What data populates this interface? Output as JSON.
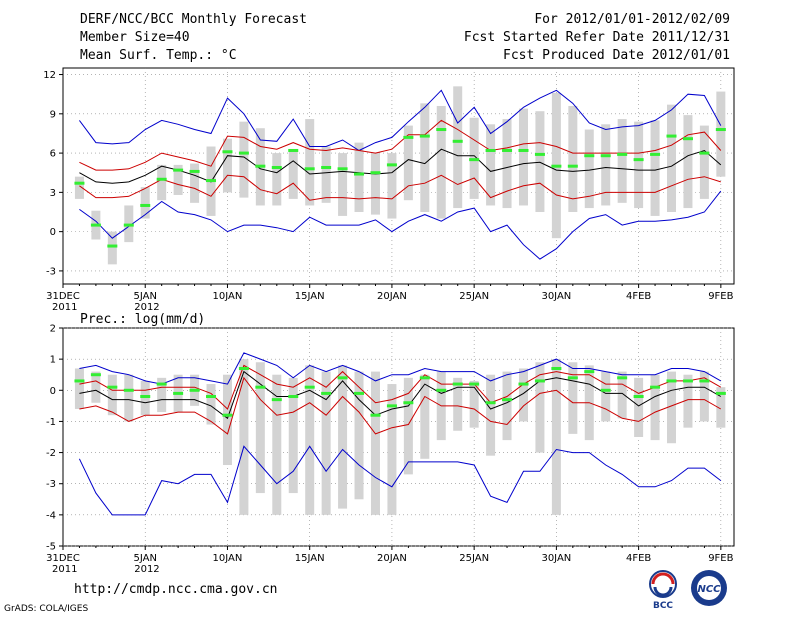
{
  "header": {
    "left": [
      "DERF/NCC/BCC Monthly Forecast",
      "Member Size=40",
      "Mean Surf. Temp.: °C"
    ],
    "right": [
      "For 2012/01/01-2012/02/09",
      "Fcst Started Refer Date 2011/12/31",
      "Fcst Produced Date 2012/01/01"
    ]
  },
  "bottom_panel_title": "Prec.: log(mm/d)",
  "footer": {
    "url": "http://cmdp.ncc.cma.gov.cn",
    "credit": "GrADS: COLA/IGES"
  },
  "logos": [
    {
      "icon": "bcc-logo",
      "label": "BCC"
    },
    {
      "icon": "ncc-logo",
      "label": "NCC"
    }
  ],
  "colors": {
    "envelope": "#0000cc",
    "spread": "#cc0000",
    "mean": "#000000",
    "box": "#d3d3d3",
    "median": "#33ee33"
  },
  "x_ticks": [
    {
      "day": 0,
      "label": "31DEC",
      "sub": "2011"
    },
    {
      "day": 5,
      "label": "5JAN",
      "sub": "2012"
    },
    {
      "day": 10,
      "label": "10JAN",
      "sub": ""
    },
    {
      "day": 15,
      "label": "15JAN",
      "sub": ""
    },
    {
      "day": 20,
      "label": "20JAN",
      "sub": ""
    },
    {
      "day": 25,
      "label": "25JAN",
      "sub": ""
    },
    {
      "day": 30,
      "label": "30JAN",
      "sub": ""
    },
    {
      "day": 35,
      "label": "4FEB",
      "sub": ""
    },
    {
      "day": 40,
      "label": "9FEB",
      "sub": ""
    }
  ],
  "chart_data": [
    {
      "type": "box",
      "title": "Mean Surf. Temp.: °C",
      "x_start_day": 1,
      "x_end_day": 40,
      "xlim": [
        0,
        40.8
      ],
      "ylim": [
        -4,
        12.5
      ],
      "yticks": [
        -3,
        0,
        3,
        6,
        9,
        12
      ],
      "box_low": [
        2.5,
        -0.6,
        -2.5,
        -0.8,
        1.0,
        2.4,
        2.8,
        2.2,
        1.2,
        3.0,
        2.6,
        2.0,
        2.0,
        2.5,
        2.0,
        2.2,
        1.2,
        1.5,
        1.3,
        1.0,
        2.4,
        1.5,
        1.0,
        1.8,
        2.5,
        2.0,
        1.8,
        2.0,
        1.5,
        -0.5,
        1.5,
        1.8,
        2.0,
        2.2,
        1.8,
        1.2,
        1.5,
        1.8,
        2.5,
        4.2
      ],
      "box_high": [
        4.2,
        1.6,
        0.0,
        2.0,
        3.4,
        5.1,
        5.1,
        5.2,
        6.5,
        7.1,
        8.4,
        7.9,
        6.0,
        6.3,
        8.6,
        6.5,
        6.0,
        6.8,
        6.0,
        6.0,
        8.1,
        9.8,
        9.6,
        11.1,
        8.7,
        8.2,
        8.6,
        9.4,
        9.2,
        10.6,
        9.6,
        7.8,
        8.2,
        8.6,
        8.4,
        8.5,
        9.7,
        8.9,
        8.1,
        10.7
      ],
      "median": [
        3.7,
        0.5,
        -1.1,
        0.5,
        2.0,
        4.0,
        4.7,
        4.6,
        3.9,
        6.1,
        6.0,
        5.0,
        4.9,
        6.2,
        4.8,
        4.9,
        4.8,
        4.4,
        4.5,
        5.1,
        7.2,
        7.3,
        7.8,
        6.9,
        5.5,
        6.2,
        6.2,
        6.2,
        5.9,
        5.0,
        5.0,
        5.8,
        5.8,
        5.9,
        5.5,
        5.9,
        7.3,
        7.1,
        6.0,
        7.8
      ],
      "series": [
        {
          "name": "max",
          "color": "#0000cc",
          "values": [
            8.5,
            6.8,
            6.7,
            6.8,
            7.8,
            8.5,
            8.2,
            7.8,
            7.5,
            10.2,
            9.0,
            7.0,
            6.9,
            8.6,
            6.5,
            6.5,
            7.0,
            6.2,
            6.8,
            7.2,
            8.4,
            9.5,
            10.8,
            8.3,
            9.5,
            7.5,
            8.4,
            9.5,
            10.2,
            10.8,
            9.8,
            8.3,
            7.8,
            8.0,
            8.1,
            8.5,
            9.3,
            10.5,
            10.4,
            8.1
          ]
        },
        {
          "name": "mean+sd",
          "color": "#cc0000",
          "values": [
            5.3,
            4.7,
            4.7,
            4.8,
            5.3,
            6.0,
            5.7,
            5.4,
            5.0,
            7.3,
            7.2,
            6.5,
            6.3,
            6.8,
            6.3,
            6.2,
            6.4,
            6.2,
            6.0,
            6.3,
            7.4,
            7.4,
            8.5,
            7.8,
            7.0,
            6.2,
            6.4,
            6.7,
            6.8,
            6.5,
            6.0,
            6.0,
            6.0,
            6.0,
            6.0,
            6.2,
            6.6,
            7.4,
            7.6,
            6.2
          ]
        },
        {
          "name": "mean",
          "color": "#000000",
          "values": [
            4.5,
            3.8,
            3.7,
            3.8,
            4.3,
            5.0,
            4.7,
            4.3,
            3.8,
            5.8,
            5.7,
            4.8,
            4.5,
            5.4,
            4.4,
            4.5,
            4.6,
            4.5,
            4.4,
            4.5,
            5.5,
            5.2,
            6.3,
            5.8,
            5.8,
            4.6,
            4.9,
            5.2,
            5.3,
            4.7,
            4.6,
            4.7,
            4.9,
            4.8,
            4.7,
            4.7,
            5.0,
            5.8,
            6.2,
            5.1
          ]
        },
        {
          "name": "mean-sd",
          "color": "#cc0000",
          "values": [
            3.5,
            2.6,
            2.6,
            2.7,
            3.3,
            4.0,
            3.6,
            3.3,
            2.7,
            4.3,
            4.2,
            3.2,
            2.9,
            3.7,
            2.4,
            2.6,
            2.6,
            2.5,
            2.6,
            2.5,
            3.5,
            3.7,
            4.3,
            3.6,
            4.1,
            2.6,
            3.1,
            3.5,
            3.7,
            2.8,
            2.5,
            2.7,
            3.0,
            3.0,
            3.0,
            3.0,
            3.5,
            4.0,
            4.2,
            3.8
          ]
        },
        {
          "name": "min",
          "color": "#0000cc",
          "values": [
            1.7,
            0.8,
            -0.5,
            0.4,
            1.3,
            2.3,
            1.5,
            1.3,
            0.9,
            0.0,
            0.5,
            0.5,
            0.3,
            0.0,
            1.1,
            0.5,
            0.5,
            0.5,
            0.9,
            0.0,
            0.8,
            1.3,
            0.8,
            1.5,
            1.8,
            0.0,
            0.5,
            -1.0,
            -2.1,
            -1.3,
            0.0,
            1.0,
            1.3,
            0.5,
            0.8,
            0.8,
            0.9,
            1.1,
            1.5,
            3.1
          ]
        }
      ]
    },
    {
      "type": "box",
      "title": "Prec.: log(mm/d)",
      "x_start_day": 1,
      "x_end_day": 40,
      "xlim": [
        0,
        40.8
      ],
      "ylim": [
        -5,
        2
      ],
      "yticks": [
        -5,
        -4,
        -3,
        -2,
        -1,
        0,
        1,
        2
      ],
      "box_low": [
        -0.6,
        -0.4,
        -0.8,
        -1.0,
        -0.8,
        -0.7,
        -0.7,
        -0.5,
        -1.1,
        -2.4,
        -4.0,
        -3.3,
        -4.0,
        -3.3,
        -4.0,
        -4.0,
        -3.8,
        -3.5,
        -4.0,
        -4.0,
        -2.7,
        -2.2,
        -1.6,
        -1.3,
        -1.2,
        -2.1,
        -1.6,
        -1.0,
        -2.0,
        -4.0,
        -1.4,
        -1.6,
        -1.0,
        -0.9,
        -1.5,
        -1.6,
        -1.7,
        -1.2,
        -1.0,
        -1.2
      ],
      "box_high": [
        0.7,
        0.6,
        0.5,
        0.5,
        0.3,
        0.4,
        0.5,
        0.5,
        0.2,
        0.5,
        1.0,
        0.9,
        0.5,
        0.4,
        0.8,
        0.6,
        0.8,
        0.6,
        0.6,
        0.2,
        0.4,
        0.5,
        0.6,
        0.4,
        0.3,
        0.5,
        0.6,
        0.7,
        0.9,
        1.0,
        0.9,
        0.8,
        0.6,
        0.6,
        0.4,
        0.5,
        0.6,
        0.5,
        0.6,
        0.1
      ],
      "median": [
        0.3,
        0.5,
        0.1,
        0.0,
        -0.2,
        0.2,
        -0.1,
        0.0,
        -0.2,
        -0.8,
        0.7,
        0.1,
        -0.3,
        -0.2,
        0.1,
        -0.1,
        0.4,
        -0.1,
        -0.8,
        -0.5,
        -0.4,
        0.4,
        0.0,
        0.2,
        0.2,
        -0.4,
        -0.3,
        0.2,
        0.3,
        0.7,
        0.4,
        0.6,
        0.0,
        0.4,
        -0.2,
        0.1,
        0.3,
        0.3,
        0.3,
        -0.1
      ],
      "series": [
        {
          "name": "max",
          "color": "#0000cc",
          "values": [
            0.7,
            0.8,
            0.6,
            0.5,
            0.3,
            0.2,
            0.4,
            0.4,
            0.3,
            0.2,
            1.2,
            1.0,
            0.8,
            0.4,
            0.8,
            0.6,
            0.8,
            0.6,
            0.3,
            0.5,
            0.5,
            0.7,
            0.6,
            0.6,
            0.6,
            0.3,
            0.5,
            0.6,
            0.8,
            1.0,
            0.7,
            0.7,
            0.6,
            0.5,
            0.5,
            0.5,
            0.7,
            0.7,
            0.6,
            0.3
          ]
        },
        {
          "name": "mean+sd",
          "color": "#cc0000",
          "values": [
            0.2,
            0.3,
            0.0,
            0.0,
            0.0,
            0.1,
            0.1,
            0.1,
            -0.1,
            -0.6,
            0.8,
            0.5,
            0.2,
            0.1,
            0.4,
            0.1,
            0.6,
            0.1,
            -0.4,
            -0.3,
            -0.1,
            0.5,
            0.2,
            0.2,
            0.2,
            -0.4,
            -0.2,
            0.2,
            0.5,
            0.6,
            0.5,
            0.5,
            0.2,
            0.2,
            -0.1,
            0.1,
            0.3,
            0.3,
            0.4,
            0.1
          ]
        },
        {
          "name": "mean",
          "color": "#000000",
          "values": [
            -0.1,
            0.0,
            -0.3,
            -0.3,
            -0.4,
            -0.3,
            -0.3,
            -0.3,
            -0.5,
            -0.9,
            0.6,
            0.2,
            -0.2,
            -0.2,
            0.0,
            -0.3,
            0.3,
            -0.3,
            -0.8,
            -0.6,
            -0.5,
            0.2,
            -0.1,
            0.1,
            0.1,
            -0.6,
            -0.4,
            -0.1,
            0.3,
            0.4,
            0.3,
            0.2,
            -0.1,
            -0.1,
            -0.5,
            -0.2,
            0.0,
            0.1,
            0.1,
            -0.2
          ]
        },
        {
          "name": "mean-sd",
          "color": "#cc0000",
          "values": [
            -0.6,
            -0.5,
            -0.7,
            -1.0,
            -0.8,
            -0.8,
            -0.7,
            -0.7,
            -1.0,
            -1.4,
            0.4,
            -0.3,
            -0.8,
            -0.7,
            -0.4,
            -0.8,
            -0.2,
            -0.7,
            -1.4,
            -1.2,
            -1.1,
            -0.2,
            -0.5,
            -0.5,
            -0.6,
            -1.0,
            -1.1,
            -0.5,
            -0.1,
            0.0,
            -0.4,
            -0.4,
            -0.6,
            -0.9,
            -1.0,
            -0.7,
            -0.5,
            -0.3,
            -0.3,
            -0.6
          ]
        },
        {
          "name": "min",
          "color": "#0000cc",
          "values": [
            -2.2,
            -3.3,
            -4.0,
            -4.0,
            -4.0,
            -2.9,
            -3.0,
            -2.7,
            -2.7,
            -3.6,
            -1.8,
            -2.4,
            -3.0,
            -2.6,
            -1.8,
            -2.6,
            -1.9,
            -2.4,
            -2.8,
            -3.1,
            -2.3,
            -2.3,
            -2.3,
            -2.3,
            -2.4,
            -3.4,
            -3.6,
            -2.6,
            -2.6,
            -1.9,
            -2.0,
            -2.0,
            -2.4,
            -2.7,
            -3.1,
            -3.1,
            -2.9,
            -2.5,
            -2.5,
            -2.9
          ]
        }
      ]
    }
  ]
}
